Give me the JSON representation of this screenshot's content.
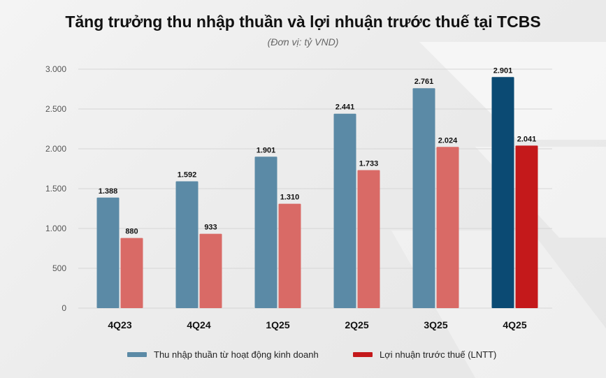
{
  "chart_data": {
    "type": "bar",
    "title": "Tăng trưởng thu nhập thuần và lợi nhuận trước thuế tại TCBS",
    "subtitle": "(Đơn vị: tỷ VND)",
    "categories": [
      "4Q23",
      "4Q24",
      "1Q25",
      "2Q25",
      "3Q25",
      "4Q25"
    ],
    "series": [
      {
        "name": "Thu nhập thuần từ hoạt động kinh doanh",
        "values": [
          1388,
          1592,
          1901,
          2441,
          2761,
          2901
        ],
        "labels": [
          "1.388",
          "1.592",
          "1.901",
          "2.441",
          "2.761",
          "2.901"
        ],
        "color": "#5b8aa6",
        "highlight_color": "#0b4a73"
      },
      {
        "name": "Lợi nhuận trước thuế (LNTT)",
        "values": [
          880,
          933,
          1310,
          1733,
          2024,
          2041
        ],
        "labels": [
          "880",
          "933",
          "1.310",
          "1.733",
          "2.024",
          "2.041"
        ],
        "color": "#d96a66",
        "highlight_color": "#c4191b"
      }
    ],
    "highlight_category": "4Q25",
    "ylim": [
      0,
      3000
    ],
    "yticks": [
      0,
      500,
      1000,
      1500,
      2000,
      2500,
      3000
    ],
    "ytick_labels": [
      "0",
      "500",
      "1.000",
      "1.500",
      "2.000",
      "2.500",
      "3.000"
    ],
    "grid": true,
    "legend_position": "bottom"
  }
}
